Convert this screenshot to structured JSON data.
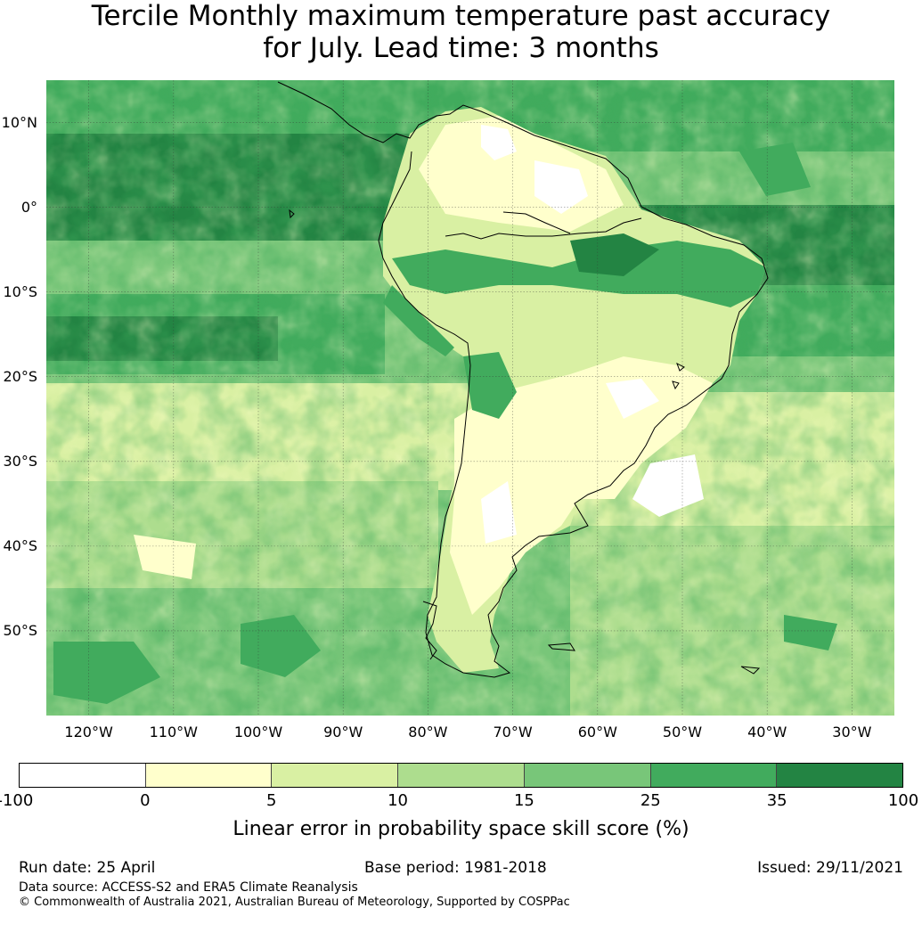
{
  "title": {
    "line1": "Tercile Monthly maximum temperature past accuracy",
    "line2": "for July. Lead time: 3 months"
  },
  "map": {
    "lat_labels": [
      "10°N",
      "0°",
      "10°S",
      "20°S",
      "30°S",
      "40°S",
      "50°S"
    ],
    "lon_labels": [
      "120°W",
      "110°W",
      "100°W",
      "90°W",
      "80°W",
      "70°W",
      "60°W",
      "50°W",
      "40°W",
      "30°W"
    ],
    "lon_range": [
      -125,
      -25
    ],
    "lat_range": [
      -60,
      15
    ]
  },
  "colorbar": {
    "ticks": [
      "-100",
      "0",
      "5",
      "10",
      "15",
      "25",
      "35",
      "100"
    ],
    "colors": [
      "#ffffff",
      "#ffffcc",
      "#d9f0a3",
      "#addd8e",
      "#78c679",
      "#41ab5d",
      "#238443"
    ],
    "label": "Linear error in probability space skill score (%)"
  },
  "footer": {
    "run_date": "Run date: 25 April",
    "base_period": "Base period: 1981-2018",
    "issued": "Issued: 29/11/2021",
    "data_source": "Data source: ACCESS-S2 and ERA5 Climate Reanalysis",
    "copyright": "© Commonwealth of Australia 2021, Australian Bureau of Meteorology, Supported by COSPPac"
  }
}
